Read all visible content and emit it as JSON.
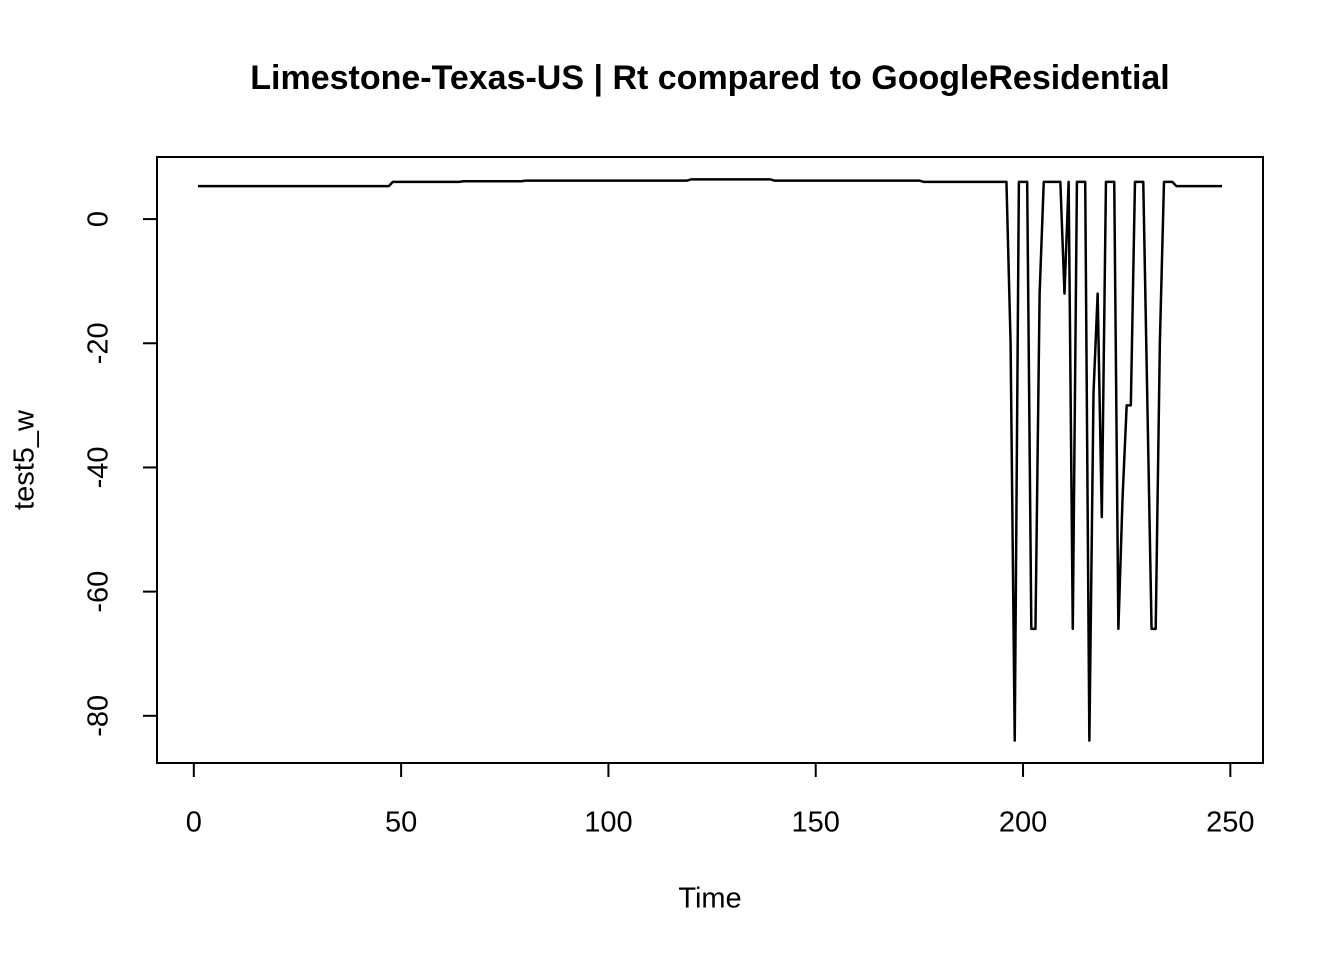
{
  "chart_data": {
    "type": "line",
    "title": "Limestone-Texas-US | Rt compared to GoogleResidential",
    "xlabel": "Time",
    "ylabel": "test5_w",
    "x": [
      1,
      2,
      3,
      4,
      5,
      6,
      7,
      8,
      9,
      10,
      11,
      12,
      13,
      14,
      15,
      16,
      17,
      18,
      19,
      20,
      21,
      22,
      23,
      24,
      25,
      26,
      27,
      28,
      29,
      30,
      31,
      32,
      33,
      34,
      35,
      36,
      37,
      38,
      39,
      40,
      41,
      42,
      43,
      44,
      45,
      46,
      47,
      48,
      49,
      50,
      51,
      52,
      53,
      54,
      55,
      56,
      57,
      58,
      59,
      60,
      61,
      62,
      63,
      64,
      65,
      66,
      67,
      68,
      69,
      70,
      71,
      72,
      73,
      74,
      75,
      76,
      77,
      78,
      79,
      80,
      81,
      82,
      83,
      84,
      85,
      86,
      87,
      88,
      89,
      90,
      91,
      92,
      93,
      94,
      95,
      96,
      97,
      98,
      99,
      100,
      101,
      102,
      103,
      104,
      105,
      106,
      107,
      108,
      109,
      110,
      111,
      112,
      113,
      114,
      115,
      116,
      117,
      118,
      119,
      120,
      121,
      122,
      123,
      124,
      125,
      126,
      127,
      128,
      129,
      130,
      131,
      132,
      133,
      134,
      135,
      136,
      137,
      138,
      139,
      140,
      141,
      142,
      143,
      144,
      145,
      146,
      147,
      148,
      149,
      150,
      151,
      152,
      153,
      154,
      155,
      156,
      157,
      158,
      159,
      160,
      161,
      162,
      163,
      164,
      165,
      166,
      167,
      168,
      169,
      170,
      171,
      172,
      173,
      174,
      175,
      176,
      177,
      178,
      179,
      180,
      181,
      182,
      183,
      184,
      185,
      186,
      187,
      188,
      189,
      190,
      191,
      192,
      193,
      194,
      195,
      196,
      197,
      198,
      199,
      200,
      201,
      202,
      203,
      204,
      205,
      206,
      207,
      208,
      209,
      210,
      211,
      212,
      213,
      214,
      215,
      216,
      217,
      218,
      219,
      220,
      221,
      222,
      223,
      224,
      225,
      226,
      227,
      228,
      229,
      230,
      231,
      232,
      233,
      234,
      235,
      236,
      237,
      238,
      239,
      240,
      241,
      242,
      243,
      244,
      245,
      246,
      247,
      248
    ],
    "series": [
      {
        "name": "test5_w",
        "color": "#000000",
        "values": [
          5.3,
          5.3,
          5.3,
          5.3,
          5.3,
          5.3,
          5.3,
          5.3,
          5.3,
          5.3,
          5.3,
          5.3,
          5.3,
          5.3,
          5.3,
          5.3,
          5.3,
          5.3,
          5.3,
          5.3,
          5.3,
          5.3,
          5.3,
          5.3,
          5.3,
          5.3,
          5.3,
          5.3,
          5.3,
          5.3,
          5.3,
          5.3,
          5.3,
          5.3,
          5.3,
          5.3,
          5.3,
          5.3,
          5.3,
          5.3,
          5.3,
          5.3,
          5.3,
          5.3,
          5.3,
          5.3,
          5.3,
          6.0,
          6.0,
          6.0,
          6.0,
          6.0,
          6.0,
          6.0,
          6.0,
          6.0,
          6.0,
          6.0,
          6.0,
          6.0,
          6.0,
          6.0,
          6.0,
          6.0,
          6.1,
          6.1,
          6.1,
          6.1,
          6.1,
          6.1,
          6.1,
          6.1,
          6.1,
          6.1,
          6.1,
          6.1,
          6.1,
          6.1,
          6.1,
          6.2,
          6.2,
          6.2,
          6.2,
          6.2,
          6.2,
          6.2,
          6.2,
          6.2,
          6.2,
          6.2,
          6.2,
          6.2,
          6.2,
          6.2,
          6.2,
          6.2,
          6.2,
          6.2,
          6.2,
          6.2,
          6.2,
          6.2,
          6.2,
          6.2,
          6.2,
          6.2,
          6.2,
          6.2,
          6.2,
          6.2,
          6.2,
          6.2,
          6.2,
          6.2,
          6.2,
          6.2,
          6.2,
          6.2,
          6.2,
          6.4,
          6.4,
          6.4,
          6.4,
          6.4,
          6.4,
          6.4,
          6.4,
          6.4,
          6.4,
          6.4,
          6.4,
          6.4,
          6.4,
          6.4,
          6.4,
          6.4,
          6.4,
          6.4,
          6.4,
          6.2,
          6.2,
          6.2,
          6.2,
          6.2,
          6.2,
          6.2,
          6.2,
          6.2,
          6.2,
          6.2,
          6.2,
          6.2,
          6.2,
          6.2,
          6.2,
          6.2,
          6.2,
          6.2,
          6.2,
          6.2,
          6.2,
          6.2,
          6.2,
          6.2,
          6.2,
          6.2,
          6.2,
          6.2,
          6.2,
          6.2,
          6.2,
          6.2,
          6.2,
          6.2,
          6.2,
          6.0,
          6.0,
          6.0,
          6.0,
          6.0,
          6.0,
          6.0,
          6.0,
          6.0,
          6.0,
          6.0,
          6.0,
          6.0,
          6.0,
          6.0,
          6.0,
          6.0,
          6.0,
          6.0,
          6.0,
          6.0,
          -20,
          -84,
          6,
          6,
          6,
          -66,
          -66,
          -12,
          6,
          6,
          6,
          6,
          6,
          -12,
          6,
          -66,
          6,
          6,
          6,
          -84,
          -28,
          -12,
          -48,
          6,
          6,
          6,
          -66,
          -45,
          -30,
          -30,
          6,
          6,
          6,
          -30,
          -66,
          -66,
          -20,
          6,
          6,
          6,
          5.3,
          5.3,
          5.3,
          5.3,
          5.3,
          5.3,
          5.3,
          5.3,
          5.3,
          5.3,
          5.3,
          5.3
        ]
      }
    ],
    "xlim": [
      -8.88,
      257.88
    ],
    "xticks": [
      0,
      50,
      100,
      150,
      200,
      250
    ],
    "ylim": [
      -87.6,
      10.0
    ],
    "yticks": [
      0,
      -20,
      -40,
      -60,
      -80
    ],
    "grid": false
  }
}
